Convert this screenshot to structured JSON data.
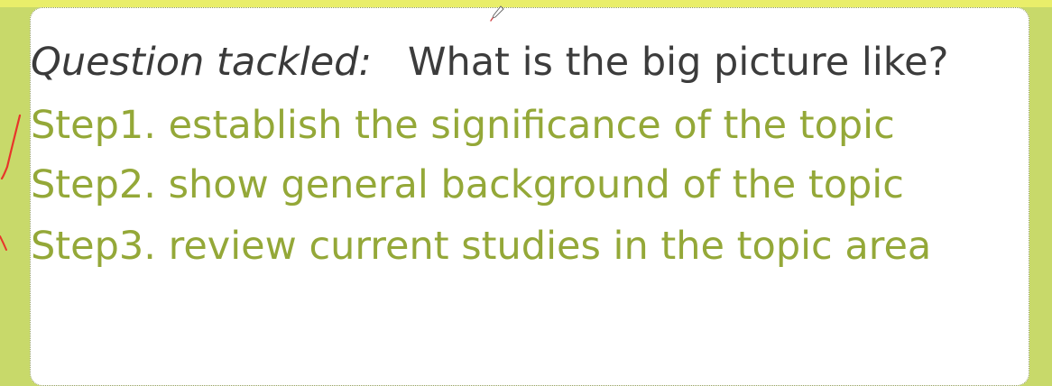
{
  "slide": {
    "question_label": "Question tackled:",
    "question_text": "What is the big picture like?",
    "steps": [
      "Step1. establish the significance of the topic",
      "Step2. show general background of the topic",
      "Step3. review current studies in the topic area"
    ]
  },
  "icons": {
    "pen_cursor": "pen-cursor-icon",
    "annotation": "red-ink-annotation"
  },
  "colors": {
    "background": "#c8d96a",
    "panel": "#ffffff",
    "step_text": "#94a838",
    "question_text": "#3c3c3c",
    "annotation": "#e8352a"
  }
}
